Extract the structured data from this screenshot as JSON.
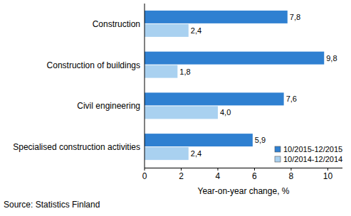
{
  "chart_data": {
    "type": "bar",
    "orientation": "horizontal",
    "categories": [
      "Construction",
      "Construction of buildings",
      "Civil engineering",
      "Specialised construction activities"
    ],
    "series": [
      {
        "name": "10/2015-12/2015",
        "color": "#2f80d1",
        "values": [
          7.8,
          9.8,
          7.6,
          5.9
        ],
        "value_labels": [
          "7,8",
          "9,8",
          "7,6",
          "5,9"
        ]
      },
      {
        "name": "10/2014-12/2014",
        "color": "#a9d1f0",
        "values": [
          2.4,
          1.8,
          4.0,
          2.4
        ],
        "value_labels": [
          "2,4",
          "1,8",
          "4,0",
          "2,4"
        ]
      }
    ],
    "x_label": "Year-on-year change, %",
    "source": "Source: Statistics Finland",
    "xlim": [
      0,
      10.8
    ],
    "xticks": [
      0,
      2,
      4,
      6,
      8,
      10
    ],
    "grid": false,
    "legend": "lower right",
    "data_labels": true
  }
}
